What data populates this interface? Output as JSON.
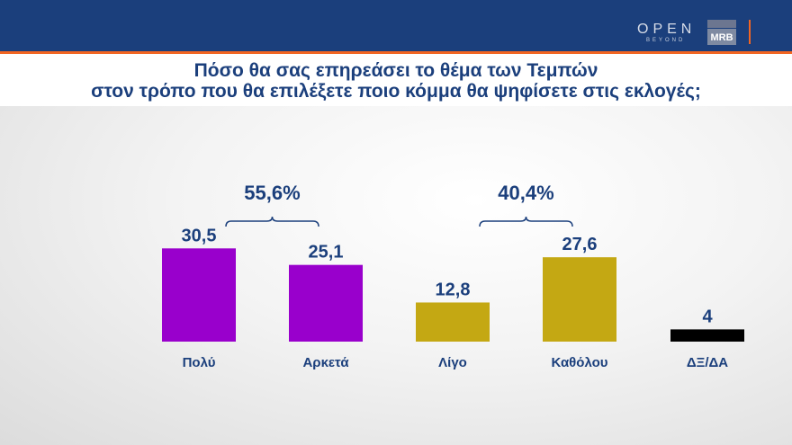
{
  "header": {
    "logo_open": "OPEN",
    "logo_beyond": "BEYOND",
    "logo_mrb": "MRB"
  },
  "title_line1": "Πόσο θα σας επηρεάσει το θέμα των Τεμπών",
  "title_line2": "στον τρόπο που θα επιλέξετε ποιο κόμμα θα ψηφίσετε στις εκλογές;",
  "chart_data": {
    "type": "bar",
    "categories": [
      "Πολύ",
      "Αρκετά",
      "Λίγο",
      "Καθόλου",
      "ΔΞ/ΔΑ"
    ],
    "values": [
      30.5,
      25.1,
      12.8,
      27.6,
      4
    ],
    "value_labels": [
      "30,5",
      "25,1",
      "12,8",
      "27,6",
      "4"
    ],
    "colors": [
      "#9900cc",
      "#9900cc",
      "#c4a813",
      "#c4a813",
      "#000000"
    ],
    "groups": [
      {
        "label": "55,6%",
        "from": 0,
        "to": 1
      },
      {
        "label": "40,4%",
        "from": 2,
        "to": 3
      }
    ],
    "grid": false
  }
}
